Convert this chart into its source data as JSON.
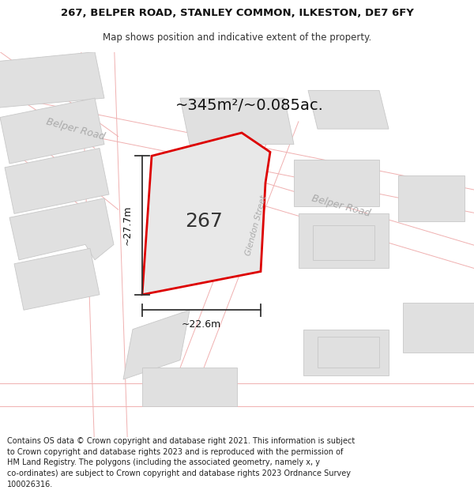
{
  "title_line1": "267, BELPER ROAD, STANLEY COMMON, ILKESTON, DE7 6FY",
  "title_line2": "Map shows position and indicative extent of the property.",
  "area_label": "~345m²/~0.085ac.",
  "property_number": "267",
  "dim_height": "~27.7m",
  "dim_width": "~22.6m",
  "road_label_topleft": "Belper Road",
  "road_label_right": "Belper Road",
  "road_label_glendon": "Glendon Street",
  "footer": "Contains OS data © Crown copyright and database right 2021. This information is subject\nto Crown copyright and database rights 2023 and is reproduced with the permission of\nHM Land Registry. The polygons (including the associated geometry, namely x, y\nco-ordinates) are subject to Crown copyright and database rights 2023 Ordnance Survey\n100026316.",
  "bg_color": "#ffffff",
  "map_bg": "#ffffff",
  "road_color": "#f0b0b0",
  "road_lw": 0.7,
  "property_color": "#dd0000",
  "property_lw": 2.0,
  "property_fill": "#e8e8e8",
  "building_fill": "#e0e0e0",
  "building_edge": "#c8c8c8",
  "building_lw": 0.6,
  "title_fontsize": 9.5,
  "subtitle_fontsize": 8.5,
  "footer_fontsize": 7.0,
  "label_color": "#aaaaaa",
  "dim_fontsize": 9.0,
  "area_fontsize": 14.0,
  "prop_num_fontsize": 18.0
}
